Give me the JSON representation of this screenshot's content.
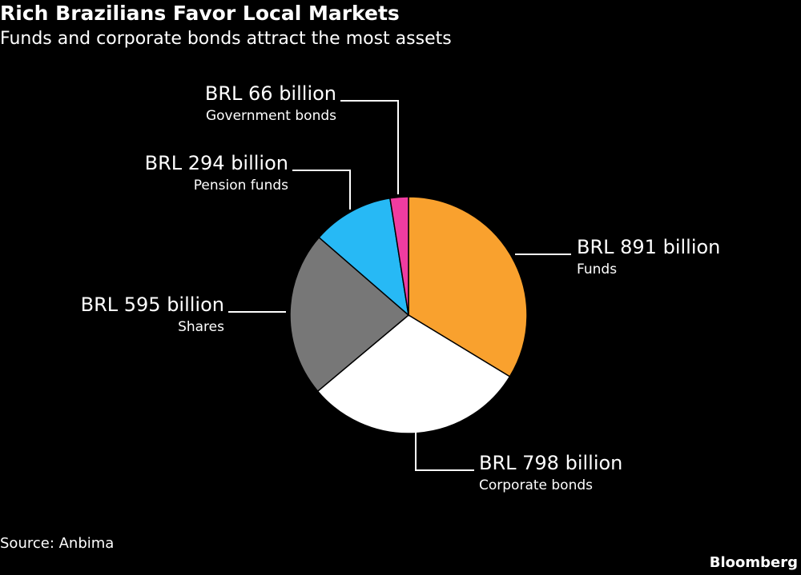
{
  "chart_data": {
    "type": "pie",
    "title": "Rich Brazilians Favor Local Markets",
    "subtitle": "Funds and corporate bonds attract the most assets",
    "categories": [
      "Funds",
      "Corporate bonds",
      "Shares",
      "Pension funds",
      "Government bonds"
    ],
    "values": [
      891,
      798,
      595,
      294,
      66
    ],
    "value_labels": [
      "BRL 891 billion",
      "BRL 798 billion",
      "BRL 595 billion",
      "BRL 294 billion",
      "BRL 66 billion"
    ],
    "colors": [
      "#f9a12e",
      "#ffffff",
      "#777777",
      "#27b9f5",
      "#f03ca0"
    ],
    "source": "Source: Anbima",
    "credit": "Bloomberg"
  }
}
